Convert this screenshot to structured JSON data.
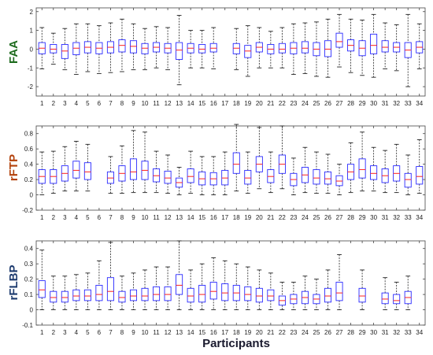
{
  "chart_data": [
    {
      "type": "boxplot",
      "ylabel": "FAA",
      "ylabel_color": "#1e6b1e",
      "ylim": [
        -2.5,
        2.2
      ],
      "yticks": [
        -2,
        -1,
        0,
        1,
        2
      ],
      "tick_labels": [
        "-2",
        "-1",
        "0",
        "1",
        "2"
      ],
      "categories": [
        "1",
        "2",
        "3",
        "4",
        "5",
        "6",
        "7",
        "8",
        "9",
        "10",
        "11",
        "12",
        "13",
        "14",
        "15",
        "16",
        "17",
        "18",
        "19",
        "20",
        "21",
        "22",
        "23",
        "24",
        "25",
        "26",
        "27",
        "28",
        "29",
        "30",
        "31",
        "32",
        "33",
        "34"
      ],
      "boxes": [
        {
          "wl": -1.05,
          "q1": -0.25,
          "med": 0.05,
          "q3": 0.35,
          "wh": 1.15
        },
        {
          "wl": -0.8,
          "q1": -0.2,
          "med": 0.0,
          "q3": 0.25,
          "wh": 0.85
        },
        {
          "wl": -1.1,
          "q1": -0.5,
          "med": -0.1,
          "q3": 0.25,
          "wh": 1.1
        },
        {
          "wl": -1.35,
          "q1": -0.3,
          "med": 0.05,
          "q3": 0.35,
          "wh": 1.35
        },
        {
          "wl": -1.2,
          "q1": -0.2,
          "med": 0.1,
          "q3": 0.4,
          "wh": 1.35
        },
        {
          "wl": -1.3,
          "q1": -0.25,
          "med": 0.05,
          "q3": 0.35,
          "wh": 1.25
        },
        {
          "wl": -1.25,
          "q1": -0.2,
          "med": 0.1,
          "q3": 0.4,
          "wh": 1.4
        },
        {
          "wl": -1.2,
          "q1": -0.15,
          "med": 0.2,
          "q3": 0.5,
          "wh": 1.6
        },
        {
          "wl": -1.1,
          "q1": -0.2,
          "med": 0.15,
          "q3": 0.45,
          "wh": 1.35
        },
        {
          "wl": -1.1,
          "q1": -0.25,
          "med": 0.05,
          "q3": 0.3,
          "wh": 1.1
        },
        {
          "wl": -1.0,
          "q1": -0.15,
          "med": 0.1,
          "q3": 0.35,
          "wh": 1.2
        },
        {
          "wl": -1.1,
          "q1": -0.2,
          "med": 0.05,
          "q3": 0.3,
          "wh": 1.15
        },
        {
          "wl": -1.9,
          "q1": -0.55,
          "med": -0.05,
          "q3": 0.35,
          "wh": 1.8
        },
        {
          "wl": -1.0,
          "q1": -0.2,
          "med": 0.05,
          "q3": 0.3,
          "wh": 1.0
        },
        {
          "wl": -1.0,
          "q1": -0.2,
          "med": 0.0,
          "q3": 0.25,
          "wh": 1.0
        },
        {
          "wl": -1.05,
          "q1": -0.15,
          "med": 0.05,
          "q3": 0.3,
          "wh": 1.15
        },
        null,
        {
          "wl": -1.1,
          "q1": -0.25,
          "med": 0.05,
          "q3": 0.3,
          "wh": 1.1
        },
        {
          "wl": -1.45,
          "q1": -0.45,
          "med": -0.1,
          "q3": 0.2,
          "wh": 1.25
        },
        {
          "wl": -1.0,
          "q1": -0.15,
          "med": 0.1,
          "q3": 0.35,
          "wh": 1.15
        },
        {
          "wl": -1.0,
          "q1": -0.25,
          "med": 0.0,
          "q3": 0.25,
          "wh": 0.95
        },
        {
          "wl": -1.0,
          "q1": -0.2,
          "med": 0.0,
          "q3": 0.3,
          "wh": 1.15
        },
        {
          "wl": -1.35,
          "q1": -0.25,
          "med": 0.05,
          "q3": 0.35,
          "wh": 1.35
        },
        {
          "wl": -1.3,
          "q1": -0.2,
          "med": 0.05,
          "q3": 0.4,
          "wh": 1.4
        },
        {
          "wl": -1.45,
          "q1": -0.35,
          "med": 0.0,
          "q3": 0.35,
          "wh": 1.45
        },
        {
          "wl": -1.5,
          "q1": -0.4,
          "med": 0.0,
          "q3": 0.45,
          "wh": 1.6
        },
        {
          "wl": -0.95,
          "q1": 0.1,
          "med": 0.4,
          "q3": 0.85,
          "wh": 1.85
        },
        {
          "wl": -1.25,
          "q1": -0.1,
          "med": 0.2,
          "q3": 0.5,
          "wh": 1.6
        },
        {
          "wl": -1.4,
          "q1": -0.35,
          "med": 0.05,
          "q3": 0.45,
          "wh": 1.55
        },
        {
          "wl": -1.5,
          "q1": -0.25,
          "med": 0.2,
          "q3": 0.8,
          "wh": 1.85
        },
        {
          "wl": -1.05,
          "q1": -0.15,
          "med": 0.1,
          "q3": 0.45,
          "wh": 1.4
        },
        {
          "wl": -1.15,
          "q1": -0.15,
          "med": 0.1,
          "q3": 0.35,
          "wh": 1.3
        },
        {
          "wl": -2.0,
          "q1": -0.45,
          "med": -0.05,
          "q3": 0.35,
          "wh": 1.85
        },
        {
          "wl": -1.05,
          "q1": -0.2,
          "med": 0.1,
          "q3": 0.4,
          "wh": 1.35
        }
      ]
    },
    {
      "type": "boxplot",
      "ylabel": "rFTP",
      "ylabel_color": "#b3410a",
      "ylim": [
        -0.2,
        0.9
      ],
      "yticks": [
        -0.2,
        0,
        0.2,
        0.4,
        0.6,
        0.8
      ],
      "tick_labels": [
        "-0.2",
        "0",
        "0.2",
        "0.4",
        "0.6",
        "0.8"
      ],
      "categories": [
        "1",
        "2",
        "3",
        "4",
        "5",
        "6",
        "7",
        "8",
        "9",
        "10",
        "11",
        "12",
        "13",
        "14",
        "15",
        "16",
        "17",
        "18",
        "19",
        "20",
        "21",
        "22",
        "23",
        "24",
        "25",
        "26",
        "27",
        "28",
        "29",
        "30",
        "31",
        "32",
        "33",
        "34"
      ],
      "boxes": [
        {
          "wl": 0.0,
          "q1": 0.15,
          "med": 0.24,
          "q3": 0.33,
          "wh": 0.56
        },
        {
          "wl": 0.02,
          "q1": 0.15,
          "med": 0.24,
          "q3": 0.33,
          "wh": 0.57
        },
        {
          "wl": 0.05,
          "q1": 0.18,
          "med": 0.28,
          "q3": 0.38,
          "wh": 0.63
        },
        {
          "wl": 0.05,
          "q1": 0.22,
          "med": 0.32,
          "q3": 0.44,
          "wh": 0.7
        },
        {
          "wl": 0.05,
          "q1": 0.2,
          "med": 0.3,
          "q3": 0.42,
          "wh": 0.66
        },
        null,
        {
          "wl": 0.02,
          "q1": 0.15,
          "med": 0.22,
          "q3": 0.3,
          "wh": 0.5
        },
        {
          "wl": 0.02,
          "q1": 0.18,
          "med": 0.28,
          "q3": 0.38,
          "wh": 0.64
        },
        {
          "wl": 0.03,
          "q1": 0.2,
          "med": 0.3,
          "q3": 0.47,
          "wh": 0.84
        },
        {
          "wl": 0.03,
          "q1": 0.2,
          "med": 0.32,
          "q3": 0.44,
          "wh": 0.82
        },
        {
          "wl": 0.03,
          "q1": 0.17,
          "med": 0.25,
          "q3": 0.34,
          "wh": 0.57
        },
        {
          "wl": 0.02,
          "q1": 0.15,
          "med": 0.22,
          "q3": 0.31,
          "wh": 0.52
        },
        {
          "wl": 0.0,
          "q1": 0.1,
          "med": 0.16,
          "q3": 0.22,
          "wh": 0.36
        },
        {
          "wl": 0.02,
          "q1": 0.16,
          "med": 0.24,
          "q3": 0.34,
          "wh": 0.57
        },
        {
          "wl": 0.0,
          "q1": 0.13,
          "med": 0.21,
          "q3": 0.3,
          "wh": 0.5
        },
        {
          "wl": 0.0,
          "q1": 0.13,
          "med": 0.21,
          "q3": 0.29,
          "wh": 0.5
        },
        {
          "wl": 0.0,
          "q1": 0.13,
          "med": 0.22,
          "q3": 0.32,
          "wh": 0.56
        },
        {
          "wl": 0.05,
          "q1": 0.28,
          "med": 0.4,
          "q3": 0.55,
          "wh": 0.92
        },
        {
          "wl": 0.02,
          "q1": 0.14,
          "med": 0.22,
          "q3": 0.32,
          "wh": 0.56
        },
        {
          "wl": 0.08,
          "q1": 0.3,
          "med": 0.4,
          "q3": 0.5,
          "wh": 0.88
        },
        {
          "wl": 0.03,
          "q1": 0.16,
          "med": 0.24,
          "q3": 0.33,
          "wh": 0.56
        },
        {
          "wl": 0.08,
          "q1": 0.28,
          "med": 0.4,
          "q3": 0.52,
          "wh": 0.9
        },
        {
          "wl": 0.0,
          "q1": 0.12,
          "med": 0.2,
          "q3": 0.28,
          "wh": 0.48
        },
        {
          "wl": 0.03,
          "q1": 0.16,
          "med": 0.26,
          "q3": 0.36,
          "wh": 0.62
        },
        {
          "wl": 0.02,
          "q1": 0.14,
          "med": 0.22,
          "q3": 0.33,
          "wh": 0.56
        },
        {
          "wl": 0.02,
          "q1": 0.14,
          "med": 0.21,
          "q3": 0.3,
          "wh": 0.53
        },
        {
          "wl": 0.0,
          "q1": 0.12,
          "med": 0.18,
          "q3": 0.25,
          "wh": 0.4
        },
        {
          "wl": 0.03,
          "q1": 0.2,
          "med": 0.3,
          "q3": 0.4,
          "wh": 0.68
        },
        {
          "wl": 0.05,
          "q1": 0.22,
          "med": 0.33,
          "q3": 0.47,
          "wh": 0.82
        },
        {
          "wl": 0.05,
          "q1": 0.2,
          "med": 0.28,
          "q3": 0.38,
          "wh": 0.62
        },
        {
          "wl": 0.03,
          "q1": 0.16,
          "med": 0.25,
          "q3": 0.34,
          "wh": 0.58
        },
        {
          "wl": 0.03,
          "q1": 0.18,
          "med": 0.28,
          "q3": 0.38,
          "wh": 0.66
        },
        {
          "wl": 0.0,
          "q1": 0.1,
          "med": 0.2,
          "q3": 0.28,
          "wh": 0.52
        },
        {
          "wl": 0.02,
          "q1": 0.14,
          "med": 0.24,
          "q3": 0.37,
          "wh": 0.72
        }
      ]
    },
    {
      "type": "boxplot",
      "ylabel": "rFLBP",
      "ylabel_color": "#1c3a6e",
      "ylim": [
        -0.1,
        0.45
      ],
      "yticks": [
        -0.1,
        0,
        0.1,
        0.2,
        0.3,
        0.4
      ],
      "tick_labels": [
        "-0.1",
        "0",
        "0.1",
        "0.2",
        "0.3",
        "0.4"
      ],
      "categories": [
        "1",
        "2",
        "3",
        "4",
        "5",
        "6",
        "7",
        "8",
        "9",
        "10",
        "11",
        "12",
        "13",
        "14",
        "15",
        "16",
        "17",
        "18",
        "19",
        "20",
        "21",
        "22",
        "23",
        "24",
        "25",
        "26",
        "27",
        "28",
        "29",
        "30",
        "31",
        "32",
        "33",
        "34"
      ],
      "boxes": [
        {
          "wl": 0.0,
          "q1": 0.08,
          "med": 0.13,
          "q3": 0.19,
          "wh": 0.39
        },
        {
          "wl": 0.0,
          "q1": 0.05,
          "med": 0.08,
          "q3": 0.12,
          "wh": 0.22
        },
        {
          "wl": 0.0,
          "q1": 0.05,
          "med": 0.08,
          "q3": 0.12,
          "wh": 0.22
        },
        {
          "wl": 0.0,
          "q1": 0.06,
          "med": 0.09,
          "q3": 0.13,
          "wh": 0.23
        },
        {
          "wl": 0.0,
          "q1": 0.06,
          "med": 0.09,
          "q3": 0.13,
          "wh": 0.24
        },
        {
          "wl": 0.0,
          "q1": 0.06,
          "med": 0.1,
          "q3": 0.16,
          "wh": 0.32
        },
        {
          "wl": 0.0,
          "q1": 0.06,
          "med": 0.12,
          "q3": 0.21,
          "wh": 0.44
        },
        {
          "wl": 0.0,
          "q1": 0.05,
          "med": 0.08,
          "q3": 0.12,
          "wh": 0.22
        },
        {
          "wl": 0.0,
          "q1": 0.06,
          "med": 0.09,
          "q3": 0.13,
          "wh": 0.24
        },
        {
          "wl": 0.0,
          "q1": 0.06,
          "med": 0.09,
          "q3": 0.14,
          "wh": 0.26
        },
        {
          "wl": 0.0,
          "q1": 0.06,
          "med": 0.1,
          "q3": 0.15,
          "wh": 0.28
        },
        {
          "wl": 0.0,
          "q1": 0.06,
          "med": 0.1,
          "q3": 0.15,
          "wh": 0.28
        },
        {
          "wl": 0.0,
          "q1": 0.1,
          "med": 0.16,
          "q3": 0.23,
          "wh": 0.45
        },
        {
          "wl": 0.0,
          "q1": 0.05,
          "med": 0.09,
          "q3": 0.14,
          "wh": 0.26
        },
        {
          "wl": 0.0,
          "q1": 0.05,
          "med": 0.1,
          "q3": 0.16,
          "wh": 0.3
        },
        {
          "wl": 0.0,
          "q1": 0.07,
          "med": 0.12,
          "q3": 0.18,
          "wh": 0.34
        },
        {
          "wl": 0.0,
          "q1": 0.06,
          "med": 0.11,
          "q3": 0.17,
          "wh": 0.32
        },
        {
          "wl": 0.0,
          "q1": 0.06,
          "med": 0.11,
          "q3": 0.16,
          "wh": 0.3
        },
        {
          "wl": 0.0,
          "q1": 0.06,
          "med": 0.1,
          "q3": 0.15,
          "wh": 0.28
        },
        {
          "wl": 0.0,
          "q1": 0.05,
          "med": 0.09,
          "q3": 0.14,
          "wh": 0.26
        },
        {
          "wl": 0.0,
          "q1": 0.06,
          "med": 0.09,
          "q3": 0.13,
          "wh": 0.24
        },
        {
          "wl": 0.0,
          "q1": 0.03,
          "med": 0.06,
          "q3": 0.09,
          "wh": 0.18
        },
        {
          "wl": 0.0,
          "q1": 0.04,
          "med": 0.07,
          "q3": 0.1,
          "wh": 0.18
        },
        {
          "wl": 0.0,
          "q1": 0.04,
          "med": 0.08,
          "q3": 0.12,
          "wh": 0.22
        },
        {
          "wl": 0.0,
          "q1": 0.04,
          "med": 0.07,
          "q3": 0.1,
          "wh": 0.2
        },
        {
          "wl": 0.0,
          "q1": 0.05,
          "med": 0.09,
          "q3": 0.14,
          "wh": 0.26
        },
        {
          "wl": 0.0,
          "q1": 0.06,
          "med": 0.11,
          "q3": 0.18,
          "wh": 0.36
        },
        null,
        {
          "wl": 0.0,
          "q1": 0.05,
          "med": 0.09,
          "q3": 0.14,
          "wh": 0.26
        },
        null,
        {
          "wl": 0.0,
          "q1": 0.04,
          "med": 0.07,
          "q3": 0.11,
          "wh": 0.21
        },
        {
          "wl": 0.0,
          "q1": 0.04,
          "med": 0.06,
          "q3": 0.1,
          "wh": 0.18
        },
        {
          "wl": 0.0,
          "q1": 0.04,
          "med": 0.08,
          "q3": 0.12,
          "wh": 0.22
        },
        null
      ]
    }
  ],
  "xlabel": "Participants",
  "colors": {
    "box": "#2a2aff",
    "median": "#ff2020",
    "whisker": "#222222",
    "axis": "#444444"
  }
}
